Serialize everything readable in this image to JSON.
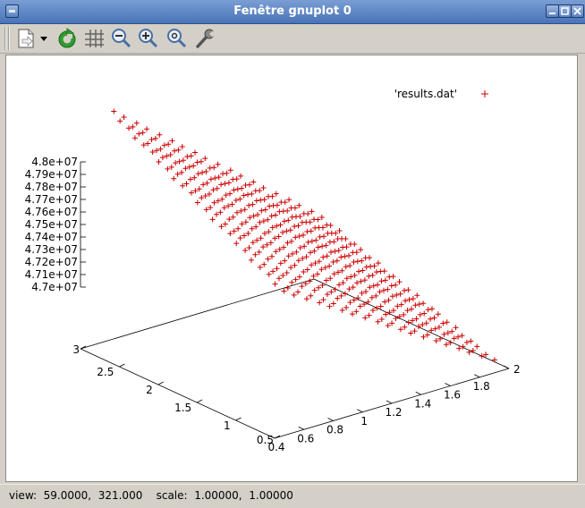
{
  "window": {
    "title": "Fenêtre gnuplot 0"
  },
  "toolbar": {
    "items": [
      {
        "name": "export",
        "icon": "document-icon"
      },
      {
        "name": "export-menu",
        "icon": "dropdown-arrow-icon"
      },
      {
        "name": "replot",
        "icon": "refresh-icon"
      },
      {
        "name": "grid",
        "icon": "grid-icon"
      },
      {
        "name": "zoom-out",
        "icon": "zoom-out-icon"
      },
      {
        "name": "zoom-in",
        "icon": "zoom-in-icon"
      },
      {
        "name": "zoom-reset",
        "icon": "zoom-reset-icon"
      },
      {
        "name": "settings",
        "icon": "wrench-icon"
      }
    ]
  },
  "status": {
    "text": "view:  59.0000,  321.000    scale:  1.00000,  1.00000"
  },
  "colors": {
    "points": "#cc0000",
    "axes": "#000000",
    "plot_bg": "#ffffff"
  },
  "chart_data": {
    "type": "scatter",
    "style": "3d-surface-points",
    "title": "",
    "view": {
      "rot_x": 59.0,
      "rot_z": 321.0,
      "scale": 1.0,
      "scale_z": 1.0
    },
    "legend": {
      "entries": [
        "'results.dat'"
      ],
      "marker": "+",
      "placement": "top-right"
    },
    "x_axis": {
      "range": [
        0.4,
        2.0
      ],
      "ticks": [
        "0.4",
        "0.6",
        "0.8",
        "1",
        "1.2",
        "1.4",
        "1.6",
        "1.8",
        "2"
      ]
    },
    "y_axis": {
      "range": [
        0.5,
        3.0
      ],
      "ticks": [
        "0.5",
        "1",
        "1.5",
        "2",
        "2.5",
        "3"
      ]
    },
    "z_axis": {
      "range": [
        47000000,
        48000000
      ],
      "ticks": [
        "4.7e+07",
        "4.71e+07",
        "4.72e+07",
        "4.73e+07",
        "4.74e+07",
        "4.75e+07",
        "4.76e+07",
        "4.77e+07",
        "4.78e+07",
        "4.79e+07",
        "4.8e+07"
      ]
    },
    "grid": false,
    "series": [
      {
        "name": "'results.dat'",
        "grid_x": {
          "start": 0.55,
          "end": 1.95,
          "steps": 22
        },
        "grid_y": {
          "start": 0.6,
          "end": 2.85,
          "steps": 18
        },
        "surface": {
          "z_min": 47000000,
          "z_max": 48000000
        }
      }
    ]
  }
}
